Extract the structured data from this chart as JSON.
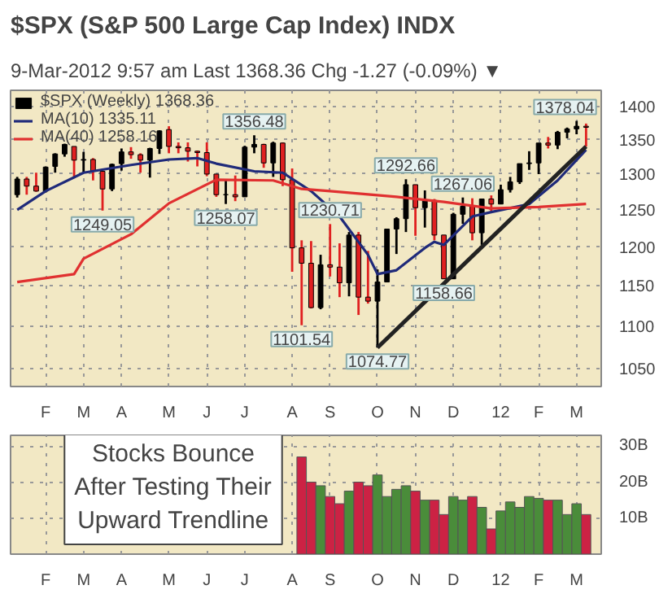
{
  "chart_data": [
    {
      "type": "candlestick",
      "title": "$SPX (S&P 500 Large Cap Index) INDX",
      "subtitle": "9-Mar-2012 9:57 am          Last 1368.36  Chg -1.27 (-0.09%) ▼",
      "log": "y",
      "grid": true,
      "legend": "top left",
      "line_style": "solid",
      "categories": [
        null,
        null,
        null,
        "F",
        null,
        null,
        null,
        "M",
        null,
        null,
        null,
        "A",
        null,
        null,
        null,
        null,
        "M",
        null,
        null,
        null,
        "J",
        null,
        null,
        null,
        "J",
        null,
        null,
        null,
        null,
        "A",
        null,
        null,
        null,
        "S",
        null,
        null,
        null,
        null,
        "O",
        null,
        null,
        null,
        "N",
        null,
        null,
        null,
        "D",
        null,
        null,
        null,
        null,
        "12",
        null,
        null,
        null,
        "F",
        null,
        null,
        null,
        "M",
        null
      ],
      "ylim": [
        1030,
        1425
      ],
      "yticks": [
        1050,
        1100,
        1150,
        1200,
        1250,
        1300,
        1350,
        1400
      ],
      "series": [
        {
          "type": "candlestick",
          "name": "$SPX (Weekly) 1368.36",
          "color": "#000000",
          "ohlc": [
            [
              1271,
              1296,
              1267,
              1293
            ],
            [
              1293,
              1296,
              1271,
              1283
            ],
            [
              1283,
              1302,
              1275,
              1276
            ],
            [
              1276,
              1311,
              1274,
              1310
            ],
            [
              1311,
              1330,
              1302,
              1329
            ],
            [
              1329,
              1344,
              1325,
              1343
            ],
            [
              1340,
              1340,
              1294,
              1320
            ],
            [
              1320,
              1332,
              1303,
              1321
            ],
            [
              1321,
              1323,
              1291,
              1304
            ],
            [
              1304,
              1304,
              1249.05,
              1279
            ],
            [
              1279,
              1315,
              1276,
              1314
            ],
            [
              1315,
              1337,
              1305,
              1332
            ],
            [
              1332,
              1339,
              1322,
              1328
            ],
            [
              1328,
              1330,
              1302,
              1320
            ],
            [
              1320,
              1338,
              1295,
              1337
            ],
            [
              1337,
              1364,
              1329,
              1363
            ],
            [
              1365,
              1370,
              1330,
              1340
            ],
            [
              1340,
              1346,
              1330,
              1338
            ],
            [
              1338,
              1346,
              1318,
              1333
            ],
            [
              1333,
              1334,
              1311,
              1331
            ],
            [
              1331,
              1346,
              1297,
              1300
            ],
            [
              1300,
              1300,
              1268,
              1271
            ],
            [
              1271,
              1292,
              1258.07,
              1271
            ],
            [
              1271,
              1298,
              1262,
              1268
            ],
            [
              1268,
              1341,
              1268,
              1339
            ],
            [
              1339,
              1356.48,
              1330,
              1343
            ],
            [
              1343,
              1344,
              1309,
              1316
            ],
            [
              1316,
              1347,
              1296,
              1345
            ],
            [
              1345,
              1346,
              1283,
              1292
            ],
            [
              1292,
              1308,
              1168,
              1199
            ],
            [
              1199,
              1209,
              1101.54,
              1179
            ],
            [
              1179,
              1208,
              1122,
              1123
            ],
            [
              1123,
              1190,
              1121,
              1177
            ],
            [
              1177,
              1230.71,
              1162,
              1174
            ],
            [
              1174,
              1205,
              1136,
              1154
            ],
            [
              1154,
              1220,
              1137,
              1216
            ],
            [
              1216,
              1220,
              1114,
              1136
            ],
            [
              1136,
              1195,
              1128,
              1131
            ],
            [
              1131,
              1171,
              1074.77,
              1155
            ],
            [
              1155,
              1224,
              1155,
              1224
            ],
            [
              1224,
              1240,
              1191,
              1238
            ],
            [
              1238,
              1292.66,
              1220,
              1285
            ],
            [
              1285,
              1285,
              1215,
              1253
            ],
            [
              1253,
              1277,
              1226,
              1263
            ],
            [
              1263,
              1265,
              1209,
              1216
            ],
            [
              1216,
              1216,
              1158.66,
              1159
            ],
            [
              1159,
              1246,
              1159,
              1244
            ],
            [
              1244,
              1267.06,
              1231,
              1255
            ],
            [
              1255,
              1266,
              1209,
              1219
            ],
            [
              1219,
              1265,
              1203,
              1265
            ],
            [
              1265,
              1270,
              1248,
              1258
            ],
            [
              1258,
              1285,
              1258,
              1278
            ],
            [
              1278,
              1296,
              1274,
              1289
            ],
            [
              1289,
              1315,
              1286,
              1315
            ],
            [
              1315,
              1333,
              1306,
              1316
            ],
            [
              1316,
              1345,
              1300,
              1345
            ],
            [
              1345,
              1354,
              1337,
              1342
            ],
            [
              1342,
              1363,
              1336,
              1361
            ],
            [
              1361,
              1368,
              1352,
              1366
            ],
            [
              1366,
              1378.04,
              1358,
              1370
            ],
            [
              1370,
              1374,
              1340,
              1368.36
            ]
          ],
          "colors": [
            "#000000",
            "#e02020",
            "#e02020",
            "#000000",
            "#000000",
            "#000000",
            "#e02020",
            "#000000",
            "#e02020",
            "#e02020",
            "#000000",
            "#000000",
            "#e02020",
            "#e02020",
            "#000000",
            "#000000",
            "#e02020",
            "#e02020",
            "#e02020",
            "#e02020",
            "#e02020",
            "#e02020",
            "#000000",
            "#e02020",
            "#000000",
            "#000000",
            "#e02020",
            "#000000",
            "#e02020",
            "#e02020",
            "#e02020",
            "#e02020",
            "#000000",
            "#e02020",
            "#e02020",
            "#000000",
            "#e02020",
            "#e02020",
            "#000000",
            "#000000",
            "#000000",
            "#000000",
            "#e02020",
            "#000000",
            "#e02020",
            "#e02020",
            "#000000",
            "#000000",
            "#e02020",
            "#000000",
            "#e02020",
            "#000000",
            "#000000",
            "#000000",
            "#000000",
            "#000000",
            "#e02020",
            "#000000",
            "#000000",
            "#000000",
            "#e02020"
          ]
        },
        {
          "type": "line",
          "name": "MA(10) 1335.11",
          "color": "#1f2a7a",
          "values": [
            1250,
            null,
            null,
            1276,
            null,
            null,
            null,
            1302,
            null,
            null,
            null,
            null,
            1313,
            null,
            null,
            null,
            1321,
            null,
            null,
            1323,
            null,
            1315,
            null,
            null,
            null,
            1304,
            null,
            null,
            1302,
            null,
            null,
            1276,
            null,
            null,
            1241,
            null,
            null,
            1190,
            1165,
            null,
            1170,
            null,
            null,
            1199,
            1207,
            1203,
            null,
            null,
            1241,
            null,
            1247,
            null,
            null,
            null,
            1258,
            null,
            null,
            1291,
            null,
            null,
            1335.11
          ]
        },
        {
          "type": "line",
          "name": "MA(40) 1258.16",
          "color": "#e03030",
          "values": [
            1155,
            null,
            null,
            null,
            null,
            null,
            1165,
            1185,
            null,
            null,
            null,
            null,
            1217,
            null,
            null,
            null,
            1259,
            null,
            null,
            null,
            null,
            1292,
            null,
            null,
            null,
            null,
            null,
            1291,
            null,
            null,
            1279,
            null,
            null,
            1276,
            null,
            null,
            null,
            null,
            null,
            null,
            1268,
            null,
            null,
            null,
            null,
            1261,
            null,
            null,
            null,
            null,
            1252,
            null,
            null,
            null,
            null,
            1254,
            null,
            null,
            null,
            null,
            1258.16
          ]
        },
        {
          "type": "line",
          "color": "#222222",
          "values": [
            null,
            null,
            null,
            null,
            null,
            null,
            null,
            null,
            null,
            null,
            null,
            null,
            null,
            null,
            null,
            null,
            null,
            null,
            null,
            null,
            null,
            null,
            null,
            null,
            null,
            null,
            null,
            null,
            null,
            null,
            null,
            null,
            null,
            null,
            null,
            null,
            null,
            null,
            1074.77,
            null,
            null,
            null,
            null,
            null,
            null,
            null,
            null,
            null,
            null,
            null,
            null,
            null,
            null,
            null,
            null,
            null,
            null,
            null,
            null,
            null,
            1340
          ]
        }
      ],
      "annotations": [
        {
          "text": "1378.04",
          "y": 1378.04
        },
        {
          "text": "1356.48",
          "y": 1356.48
        },
        {
          "text": "1249.05",
          "y": 1249.05
        },
        {
          "text": "1258.07",
          "y": 1258.07
        },
        {
          "text": "1230.71",
          "y": 1230.71
        },
        {
          "text": "1292.66",
          "y": 1292.66
        },
        {
          "text": "1267.06",
          "y": 1267.06
        },
        {
          "text": "1101.54",
          "y": 1101.54
        },
        {
          "text": "1158.66",
          "y": 1158.66
        },
        {
          "text": "1074.77",
          "y": 1074.77
        }
      ]
    },
    {
      "type": "bar",
      "grid": true,
      "categories": [
        null,
        null,
        null,
        "F",
        null,
        null,
        null,
        "M",
        null,
        null,
        null,
        "A",
        null,
        null,
        null,
        null,
        "M",
        null,
        null,
        null,
        "J",
        null,
        null,
        null,
        "J",
        null,
        null,
        null,
        null,
        "A",
        null,
        null,
        null,
        "S",
        null,
        null,
        null,
        null,
        "O",
        null,
        null,
        null,
        "N",
        null,
        null,
        null,
        "D",
        null,
        null,
        null,
        null,
        "12",
        null,
        null,
        null,
        "F",
        null,
        null,
        null,
        "M",
        null
      ],
      "ylim": [
        0,
        33
      ],
      "yticks": [
        {
          "value": 10,
          "label": "10B"
        },
        {
          "value": 20,
          "label": "20B"
        },
        {
          "value": 30,
          "label": "30B"
        }
      ],
      "values": [
        null,
        null,
        null,
        null,
        null,
        null,
        null,
        null,
        null,
        null,
        null,
        null,
        null,
        null,
        null,
        null,
        null,
        null,
        null,
        null,
        null,
        null,
        null,
        null,
        null,
        null,
        null,
        null,
        null,
        null,
        27,
        20,
        19,
        16,
        14,
        17.5,
        20,
        19,
        22,
        16,
        18,
        19,
        17.5,
        15,
        15,
        11,
        16,
        15,
        16,
        13,
        7,
        12,
        14.5,
        13,
        16,
        15.5,
        15,
        15,
        11,
        14,
        11
      ],
      "colors": [
        null,
        null,
        null,
        null,
        null,
        null,
        null,
        null,
        null,
        null,
        null,
        null,
        null,
        null,
        null,
        null,
        null,
        null,
        null,
        null,
        null,
        null,
        null,
        null,
        null,
        null,
        null,
        null,
        null,
        null,
        "#cc2244",
        "#cc2244",
        "#4a8c3a",
        "#cc2244",
        "#cc2244",
        "#4a8c3a",
        "#cc2244",
        "#cc2244",
        "#4a8c3a",
        "#4a8c3a",
        "#4a8c3a",
        "#4a8c3a",
        "#cc2244",
        "#4a8c3a",
        "#cc2244",
        "#cc2244",
        "#4a8c3a",
        "#4a8c3a",
        "#cc2244",
        "#4a8c3a",
        "#cc2244",
        "#4a8c3a",
        "#4a8c3a",
        "#4a8c3a",
        "#4a8c3a",
        "#4a8c3a",
        "#cc2244",
        "#4a8c3a",
        "#4a8c3a",
        "#4a8c3a",
        "#cc2244"
      ],
      "annotations": [
        "Stocks Bounce\nAfter Testing Their\nUpward Trendline"
      ]
    }
  ]
}
